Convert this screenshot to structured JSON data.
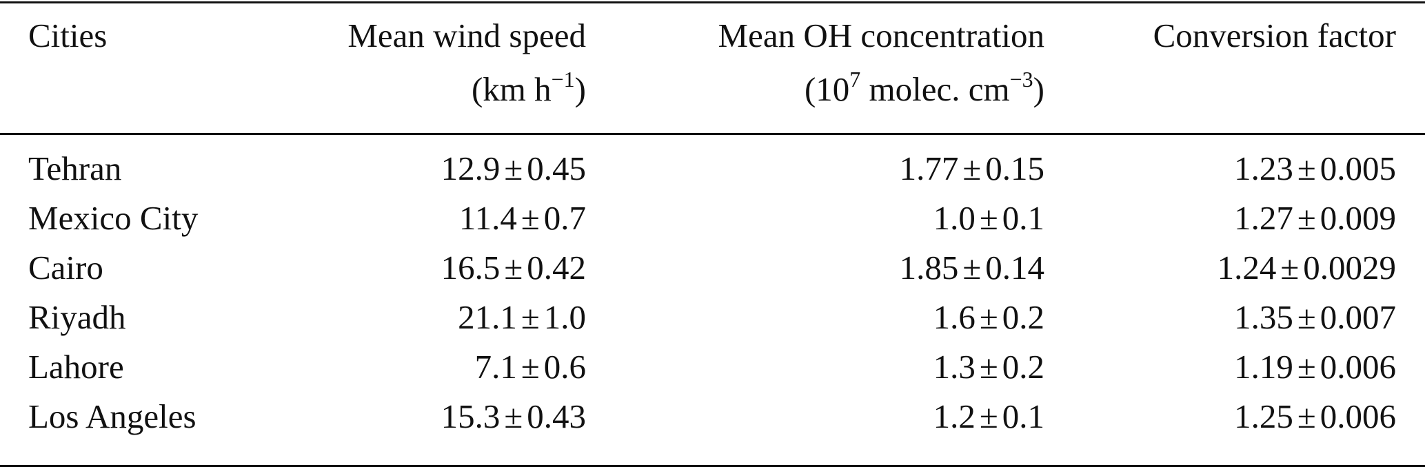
{
  "table": {
    "headers": [
      {
        "line1": "Cities",
        "line2": "",
        "line2_sup": "",
        "line2_end": ""
      },
      {
        "line1": "Mean wind speed",
        "line2": "(km h",
        "line2_sup": "−1",
        "line2_end": ")"
      },
      {
        "line1": "Mean OH concentration",
        "line2": "(10",
        "line2_sup": "7",
        "line2_end": " molec. cm",
        "line2_sup2": "−3",
        "line2_end2": ")"
      },
      {
        "line1": "Conversion factor",
        "line2": "",
        "line2_sup": "",
        "line2_end": ""
      }
    ],
    "pm_symbol": "±",
    "rows": [
      {
        "city": "Tehran",
        "wind": [
          "12.9",
          "0.45"
        ],
        "oh": [
          "1.77",
          "0.15"
        ],
        "conv": [
          "1.23",
          "0.005"
        ]
      },
      {
        "city": "Mexico City",
        "wind": [
          "11.4",
          "0.7"
        ],
        "oh": [
          "1.0",
          "0.1"
        ],
        "conv": [
          "1.27",
          "0.009"
        ]
      },
      {
        "city": "Cairo",
        "wind": [
          "16.5",
          "0.42"
        ],
        "oh": [
          "1.85",
          "0.14"
        ],
        "conv": [
          "1.24",
          "0.0029"
        ]
      },
      {
        "city": "Riyadh",
        "wind": [
          "21.1",
          "1.0"
        ],
        "oh": [
          "1.6",
          "0.2"
        ],
        "conv": [
          "1.35",
          "0.007"
        ]
      },
      {
        "city": "Lahore",
        "wind": [
          "7.1",
          "0.6"
        ],
        "oh": [
          "1.3",
          "0.2"
        ],
        "conv": [
          "1.19",
          "0.006"
        ]
      },
      {
        "city": "Los Angeles",
        "wind": [
          "15.3",
          "0.43"
        ],
        "oh": [
          "1.2",
          "0.1"
        ],
        "conv": [
          "1.25",
          "0.006"
        ]
      }
    ]
  }
}
